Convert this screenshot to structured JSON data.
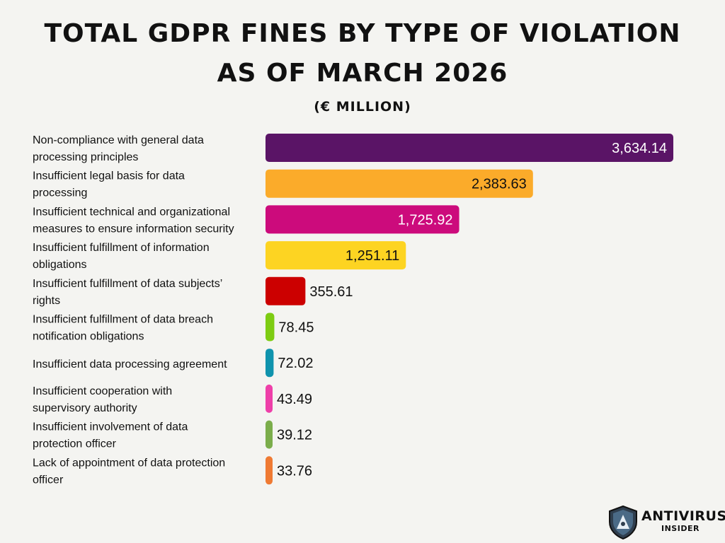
{
  "header": {
    "title_line1": "Total GDPR Fines by Type of Violation",
    "title_line2": "as of March 2026",
    "subtitle": "(€ Million)"
  },
  "logo": {
    "name": "ANTIVIRUS",
    "sub": "INSIDER",
    "icon": "shield-icon"
  },
  "chart_data": {
    "type": "bar",
    "orientation": "horizontal",
    "title": "Total GDPR Fines by Type of Violation as of March 2026",
    "subtitle": "(€ Million)",
    "xlim": [
      0,
      3700
    ],
    "grid": false,
    "legend": "none",
    "categories": [
      [
        "Non-compliance with general data",
        "processing principles"
      ],
      [
        "Insufficient legal basis for data",
        "processing"
      ],
      [
        "Insufficient technical and organizational",
        "measures to ensure information security"
      ],
      [
        "Insufficient fulfillment of information",
        "obligations"
      ],
      [
        "Insufficient fulfillment of data subjects’",
        "rights"
      ],
      [
        "Insufficient fulfillment of data breach",
        "notification obligations"
      ],
      [
        "Insufficient data processing agreement"
      ],
      [
        "Insufficient cooperation with",
        "supervisory authority"
      ],
      [
        "Insufficient involvement of data",
        "protection officer"
      ],
      [
        "Lack of appointment of data protection",
        "officer"
      ]
    ],
    "values": [
      3634.14,
      2383.63,
      1725.92,
      1251.11,
      355.61,
      78.45,
      72.02,
      43.49,
      39.12,
      33.76
    ],
    "value_labels": [
      "3,634.14",
      "2,383.63",
      "1,725.92",
      "1,251.11",
      "355.61",
      "78.45",
      "72.02",
      "43.49",
      "39.12",
      "33.76"
    ],
    "colors": [
      "#5a1466",
      "#fbab2a",
      "#cc0b7c",
      "#fdd422",
      "#cc0000",
      "#7dcc12",
      "#0f93ad",
      "#ee3fa9",
      "#7bad4b",
      "#ef7a33"
    ],
    "label_colors": [
      "#ffffff",
      "#111111",
      "#ffffff",
      "#111111",
      "#111111",
      "#111111",
      "#111111",
      "#111111",
      "#111111",
      "#111111"
    ]
  }
}
